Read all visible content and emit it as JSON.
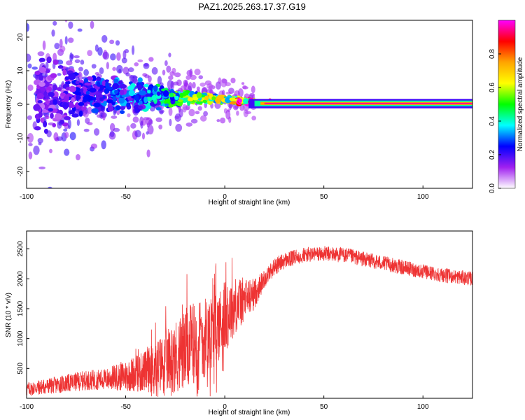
{
  "title": "PAZ1.2025.263.17.37.G19",
  "chart_data": [
    {
      "type": "heatmap",
      "name": "spectrogram",
      "xlabel": "Height of straight line (km)",
      "ylabel": "Frequency (Hz)",
      "xlim": [
        -100,
        125
      ],
      "ylim": [
        -25,
        25
      ],
      "xticks": [
        -100,
        -50,
        0,
        50,
        100
      ],
      "yticks": [
        -20,
        -10,
        0,
        10,
        20
      ],
      "colorbar": {
        "label": "Normalized spectral amplitude",
        "range": [
          0,
          1
        ],
        "ticks": [
          0.0,
          0.2,
          0.4,
          0.6,
          0.8
        ],
        "colors": [
          "#ffffff",
          "#a020f0",
          "#0000ff",
          "#00ffff",
          "#00ff00",
          "#ffff00",
          "#ffa500",
          "#ff0000",
          "#ff00ff"
        ]
      },
      "description_points": [
        {
          "x": -90,
          "f_center": 3,
          "f_spread": 12,
          "amp": 0.15
        },
        {
          "x": -70,
          "f_center": 3,
          "f_spread": 6,
          "amp": 0.2
        },
        {
          "x": -40,
          "f_center": 2.5,
          "f_spread": 5,
          "amp": 0.3
        },
        {
          "x": -20,
          "f_center": 2,
          "f_spread": 2,
          "amp": 0.45
        },
        {
          "x": 0,
          "f_center": 1.5,
          "f_spread": 1,
          "amp": 0.6
        },
        {
          "x": 20,
          "f_center": 0.3,
          "f_spread": 0.5,
          "amp": 0.95
        },
        {
          "x": 125,
          "f_center": 0.3,
          "f_spread": 0.5,
          "amp": 0.95
        }
      ]
    },
    {
      "type": "line",
      "name": "snr",
      "xlabel": "Height of straight line (km)",
      "ylabel": "SNR (10 * v/v)",
      "xlim": [
        -100,
        125
      ],
      "ylim": [
        0,
        2800
      ],
      "xticks": [
        -100,
        -50,
        0,
        50,
        100
      ],
      "yticks": [
        500,
        1000,
        1500,
        2000,
        2500
      ],
      "color": "#ee3333",
      "trend": {
        "x": [
          -100,
          -90,
          -80,
          -70,
          -60,
          -50,
          -40,
          -30,
          -20,
          -15,
          -10,
          -5,
          0,
          5,
          10,
          15,
          20,
          25,
          30,
          40,
          50,
          60,
          70,
          80,
          90,
          100,
          110,
          125
        ],
        "y": [
          150,
          200,
          250,
          300,
          320,
          380,
          450,
          600,
          800,
          950,
          1050,
          1150,
          1350,
          1550,
          1650,
          1750,
          2000,
          2200,
          2300,
          2400,
          2420,
          2400,
          2330,
          2260,
          2190,
          2120,
          2060,
          2000
        ]
      },
      "noise": {
        "x": [
          -100,
          -60,
          -40,
          -20,
          0,
          20,
          40,
          125
        ],
        "amplitude": [
          120,
          180,
          350,
          700,
          600,
          150,
          130,
          120
        ]
      }
    }
  ]
}
